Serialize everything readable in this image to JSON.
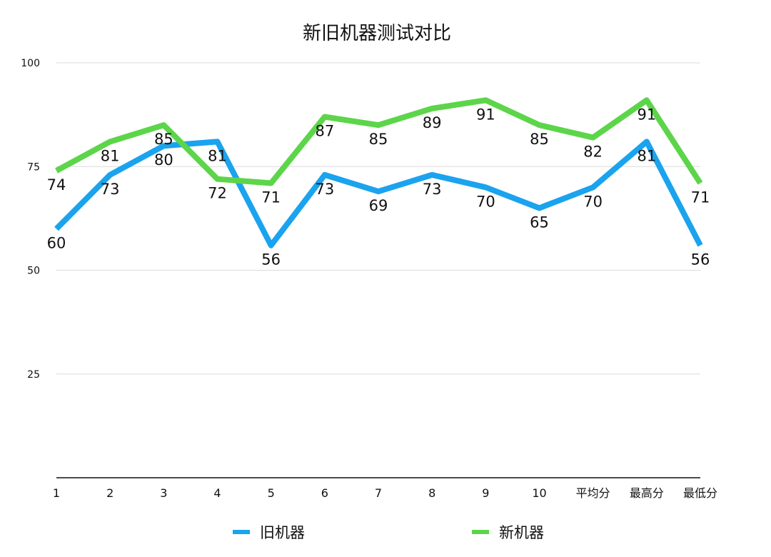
{
  "chart_data": {
    "type": "line",
    "title": "新旧机器测试对比",
    "xlabel": "",
    "ylabel": "",
    "categories": [
      "1",
      "2",
      "3",
      "4",
      "5",
      "6",
      "7",
      "8",
      "9",
      "10",
      "平均分",
      "最高分",
      "最低分"
    ],
    "series": [
      {
        "name": "旧机器",
        "color": "#1aa3ee",
        "values": [
          60,
          73,
          80,
          81,
          56,
          73,
          69,
          73,
          70,
          65,
          70,
          81,
          56
        ]
      },
      {
        "name": "新机器",
        "color": "#5dd54a",
        "values": [
          74,
          81,
          85,
          72,
          71,
          87,
          85,
          89,
          91,
          85,
          82,
          91,
          71
        ]
      }
    ],
    "ylim": [
      0,
      100
    ],
    "yticks": [
      25,
      50,
      75,
      100
    ],
    "grid": true,
    "legend_position": "bottom"
  }
}
